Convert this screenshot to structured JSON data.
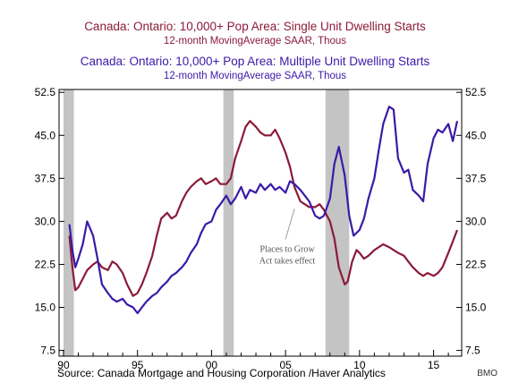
{
  "titles": {
    "single_title": "Canada: Ontario: 10,000+ Pop Area: Single Unit Dwelling Starts",
    "single_subtitle": "12-month MovingAverage     SAAR, Thous",
    "multiple_title": "Canada: Ontario: 10,000+ Pop Area: Multiple Unit Dwelling Starts",
    "multiple_subtitle": "12-month MovingAverage     SAAR, Thous"
  },
  "source": "Source:  Canada Mortgage and Housing Corporation /Haver Analytics",
  "credit": "BMO",
  "colors": {
    "single": "#8b1a3a",
    "multiple": "#3a1aa8",
    "recession": "#c4c4c4",
    "axis": "#000000"
  },
  "chart_data": {
    "type": "line",
    "title": "",
    "xlabel": "",
    "ylabel": "",
    "xlim": [
      1989.7,
      2016.9
    ],
    "ylim": [
      6.5,
      53.0
    ],
    "y_ticks": [
      7.5,
      15.0,
      22.5,
      30.0,
      37.5,
      45.0,
      52.5
    ],
    "y_tick_labels": [
      "7.5",
      "15.0",
      "22.5",
      "30.0",
      "37.5",
      "45.0",
      "52.5"
    ],
    "x_ticks": [
      1990,
      1995,
      2000,
      2005,
      2010,
      2015
    ],
    "x_tick_labels": [
      "90",
      "95",
      "00",
      "05",
      "10",
      "15"
    ],
    "grid": false,
    "recession_bands": [
      [
        1990.0,
        1990.7
      ],
      [
        2000.8,
        2001.5
      ],
      [
        2007.7,
        2009.3
      ]
    ],
    "annotation": {
      "lines": [
        "Places to Grow",
        "Act takes effect"
      ],
      "point": [
        2005.6,
        32.5
      ]
    },
    "series": [
      {
        "name": "Single Unit Dwelling Starts",
        "color_key": "single",
        "x": [
          1990.4,
          1990.6,
          1990.8,
          1991.0,
          1991.3,
          1991.6,
          1992.0,
          1992.3,
          1992.6,
          1993.0,
          1993.3,
          1993.6,
          1994.0,
          1994.3,
          1994.7,
          1995.0,
          1995.3,
          1995.6,
          1996.0,
          1996.3,
          1996.6,
          1997.0,
          1997.3,
          1997.6,
          1998.0,
          1998.3,
          1998.6,
          1999.0,
          1999.3,
          1999.6,
          2000.0,
          2000.3,
          2000.6,
          2001.0,
          2001.3,
          2001.6,
          2002.0,
          2002.3,
          2002.6,
          2003.0,
          2003.3,
          2003.6,
          2004.0,
          2004.3,
          2004.6,
          2005.0,
          2005.3,
          2005.6,
          2006.0,
          2006.3,
          2006.6,
          2007.0,
          2007.3,
          2007.6,
          2008.0,
          2008.3,
          2008.6,
          2009.0,
          2009.2,
          2009.5,
          2009.8,
          2010.0,
          2010.3,
          2010.6,
          2011.0,
          2011.3,
          2011.6,
          2012.0,
          2012.3,
          2012.6,
          2013.0,
          2013.3,
          2013.6,
          2014.0,
          2014.3,
          2014.6,
          2015.0,
          2015.3,
          2015.6,
          2016.0,
          2016.3,
          2016.6
        ],
        "values": [
          27.5,
          22.0,
          18.0,
          18.5,
          20.0,
          21.5,
          22.5,
          23.0,
          22.0,
          21.5,
          23.0,
          22.5,
          21.0,
          19.0,
          17.0,
          17.5,
          19.0,
          21.0,
          24.0,
          27.5,
          30.5,
          31.5,
          30.5,
          31.0,
          33.5,
          35.0,
          36.0,
          37.0,
          37.5,
          36.5,
          37.0,
          37.5,
          36.5,
          36.5,
          37.5,
          41.0,
          44.0,
          46.5,
          47.5,
          46.5,
          45.5,
          45.0,
          45.0,
          46.0,
          44.5,
          42.0,
          39.5,
          36.0,
          33.5,
          33.0,
          32.5,
          32.5,
          33.0,
          32.0,
          30.0,
          27.0,
          22.0,
          19.0,
          19.5,
          23.0,
          25.0,
          24.5,
          23.5,
          24.0,
          25.0,
          25.5,
          26.0,
          25.5,
          25.0,
          24.5,
          24.0,
          23.0,
          22.0,
          21.0,
          20.5,
          21.0,
          20.5,
          21.0,
          22.0,
          24.5,
          26.5,
          28.5
        ]
      },
      {
        "name": "Multiple Unit Dwelling Starts",
        "color_key": "multiple",
        "x": [
          1990.4,
          1990.6,
          1990.8,
          1991.0,
          1991.3,
          1991.6,
          1992.0,
          1992.3,
          1992.6,
          1993.0,
          1993.3,
          1993.6,
          1994.0,
          1994.3,
          1994.7,
          1995.0,
          1995.3,
          1995.6,
          1996.0,
          1996.3,
          1996.6,
          1997.0,
          1997.3,
          1997.6,
          1998.0,
          1998.3,
          1998.6,
          1999.0,
          1999.3,
          1999.6,
          2000.0,
          2000.3,
          2000.6,
          2001.0,
          2001.3,
          2001.6,
          2002.0,
          2002.3,
          2002.6,
          2003.0,
          2003.3,
          2003.6,
          2004.0,
          2004.3,
          2004.6,
          2005.0,
          2005.3,
          2005.6,
          2006.0,
          2006.3,
          2006.6,
          2007.0,
          2007.3,
          2007.6,
          2008.0,
          2008.3,
          2008.6,
          2009.0,
          2009.3,
          2009.6,
          2010.0,
          2010.3,
          2010.6,
          2011.0,
          2011.3,
          2011.6,
          2012.0,
          2012.3,
          2012.6,
          2013.0,
          2013.3,
          2013.6,
          2014.0,
          2014.3,
          2014.6,
          2015.0,
          2015.3,
          2015.6,
          2016.0,
          2016.3,
          2016.6
        ],
        "values": [
          29.5,
          25.0,
          22.0,
          23.5,
          26.0,
          30.0,
          27.5,
          23.5,
          19.0,
          17.5,
          16.5,
          16.0,
          16.5,
          15.5,
          15.0,
          14.0,
          15.0,
          16.0,
          17.0,
          17.5,
          18.5,
          19.5,
          20.5,
          21.0,
          22.0,
          23.0,
          24.5,
          26.0,
          28.0,
          29.5,
          30.0,
          32.0,
          33.0,
          34.5,
          33.0,
          34.0,
          36.0,
          34.0,
          35.5,
          35.0,
          36.5,
          35.5,
          36.5,
          35.5,
          36.0,
          35.0,
          37.0,
          36.5,
          35.5,
          34.5,
          33.5,
          31.0,
          30.5,
          31.0,
          34.0,
          40.0,
          43.0,
          38.0,
          31.0,
          27.5,
          28.5,
          30.5,
          34.0,
          37.5,
          42.5,
          47.0,
          50.0,
          49.5,
          41.0,
          38.5,
          39.0,
          35.5,
          34.5,
          33.5,
          40.0,
          44.5,
          46.0,
          45.5,
          47.0,
          44.0,
          47.5
        ]
      }
    ]
  }
}
